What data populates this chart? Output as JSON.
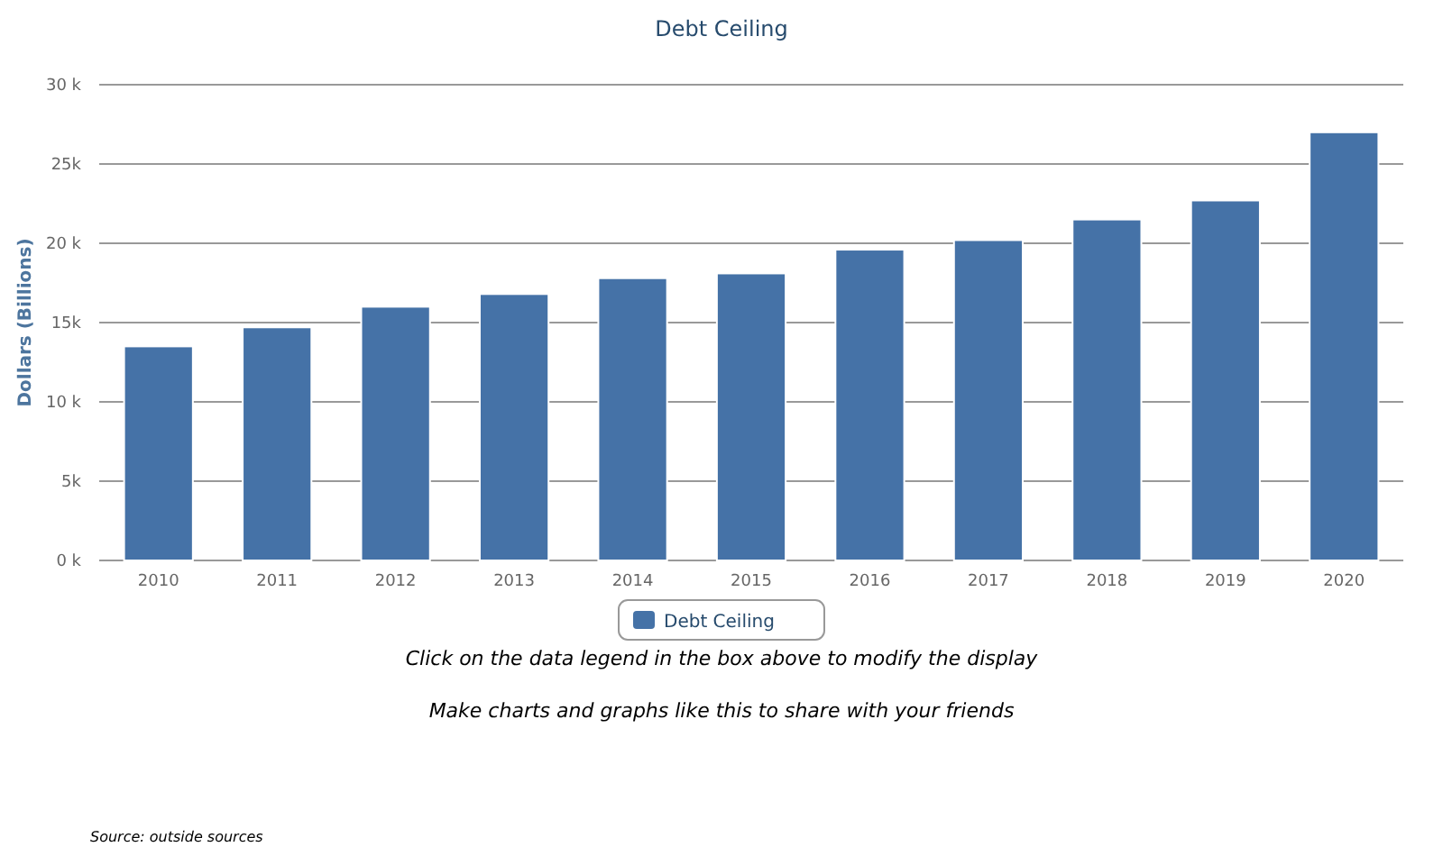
{
  "chart_data": {
    "type": "bar",
    "title": "Debt Ceiling",
    "ylabel": "Dollars (Billions)",
    "categories": [
      "2010",
      "2011",
      "2012",
      "2013",
      "2014",
      "2015",
      "2016",
      "2017",
      "2018",
      "2019",
      "2020"
    ],
    "series": [
      {
        "name": "Debt Ceiling",
        "color": "#4572a7",
        "values": [
          13500,
          14700,
          16000,
          16800,
          17800,
          18100,
          19600,
          20200,
          21500,
          22700,
          27000
        ]
      }
    ],
    "ylim": [
      0,
      30000
    ],
    "yticks": [
      {
        "value": 0,
        "label": "0 k"
      },
      {
        "value": 5000,
        "label": "5k"
      },
      {
        "value": 10000,
        "label": "10 k"
      },
      {
        "value": 15000,
        "label": "15k"
      },
      {
        "value": 20000,
        "label": "20 k"
      },
      {
        "value": 25000,
        "label": "25k"
      },
      {
        "value": 30000,
        "label": "30 k"
      }
    ],
    "grid": "y",
    "legend": "bottom",
    "annotations": [
      "Click on the data legend in the box above to modify the display",
      "Make charts and graphs like this to share with your friends",
      "Source: outside sources"
    ]
  }
}
